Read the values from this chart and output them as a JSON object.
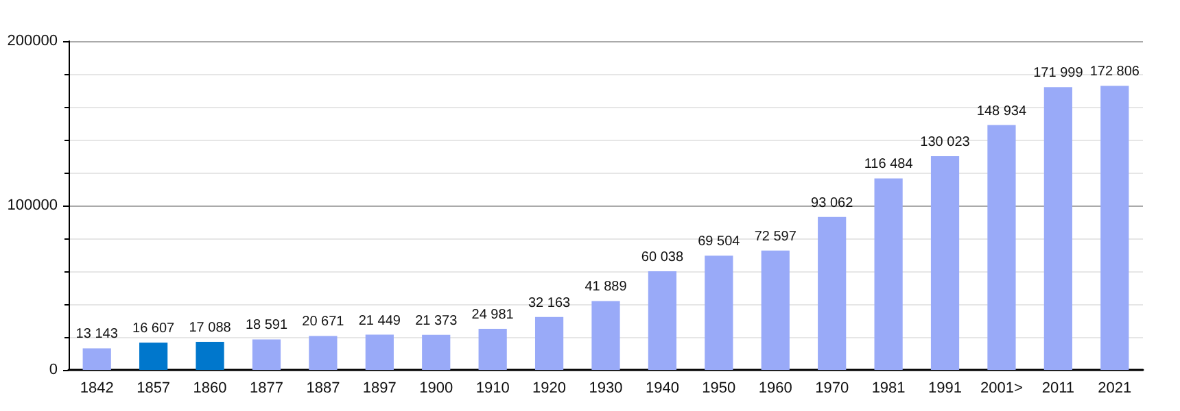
{
  "chart_data": {
    "type": "bar",
    "categories": [
      "1842",
      "1857",
      "1860",
      "1877",
      "1887",
      "1897",
      "1900",
      "1910",
      "1920",
      "1930",
      "1940",
      "1950",
      "1960",
      "1970",
      "1981",
      "1991",
      "2001>",
      "2011",
      "2021"
    ],
    "values": [
      13143,
      16607,
      17088,
      18591,
      20671,
      21449,
      21373,
      24981,
      32163,
      41889,
      60038,
      69504,
      72597,
      93062,
      116484,
      130023,
      148934,
      171999,
      172806
    ],
    "colors": [
      "#99aaf8",
      "#0077cc",
      "#0077cc",
      "#99aaf8",
      "#99aaf8",
      "#99aaf8",
      "#99aaf8",
      "#99aaf8",
      "#99aaf8",
      "#99aaf8",
      "#99aaf8",
      "#99aaf8",
      "#99aaf8",
      "#99aaf8",
      "#99aaf8",
      "#99aaf8",
      "#99aaf8",
      "#99aaf8",
      "#99aaf8"
    ],
    "value_labels": [
      "13 143",
      "16 607",
      "17 088",
      "18 591",
      "20 671",
      "21 449",
      "21 373",
      "24 981",
      "32 163",
      "41 889",
      "60 038",
      "69 504",
      "72 597",
      "93 062",
      "116 484",
      "130 023",
      "148 934",
      "171 999",
      "172 806"
    ],
    "ylim": [
      0,
      200000
    ],
    "yticks": [
      0,
      100000,
      200000
    ],
    "grid": "y"
  }
}
